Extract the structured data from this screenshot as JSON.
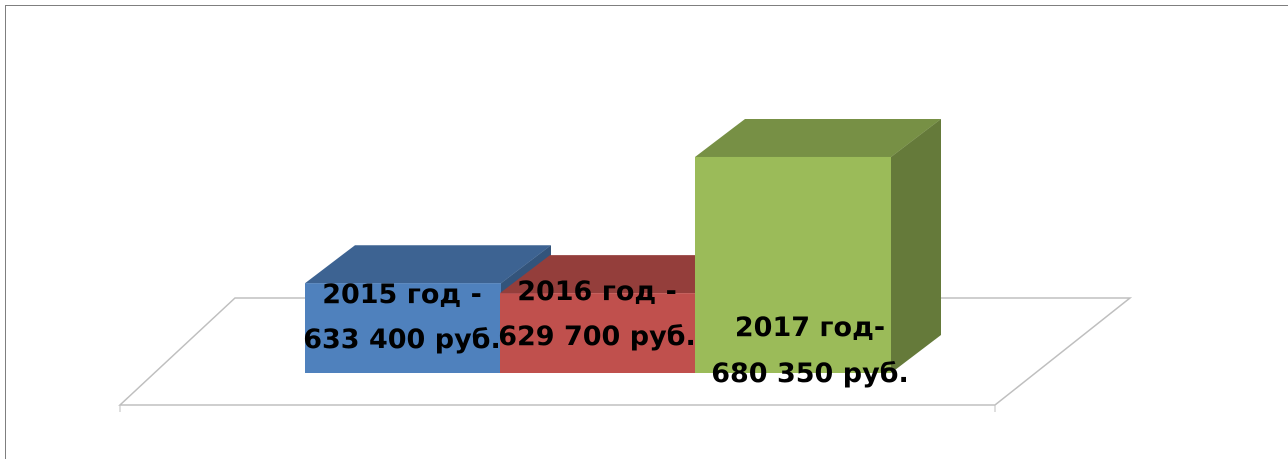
{
  "chart_data": {
    "type": "bar3d",
    "values": [
      633400,
      629700,
      680350
    ],
    "value_labels": [
      [
        "2015 год -",
        "633 400 руб."
      ],
      [
        "2016 год -",
        "629 700 руб."
      ],
      [
        "2017 год-",
        "680 350 руб."
      ]
    ],
    "colors": [
      "#4f81bd",
      "#c0504d",
      "#9bbb59"
    ],
    "ylim": [
      600000,
      690000
    ]
  }
}
